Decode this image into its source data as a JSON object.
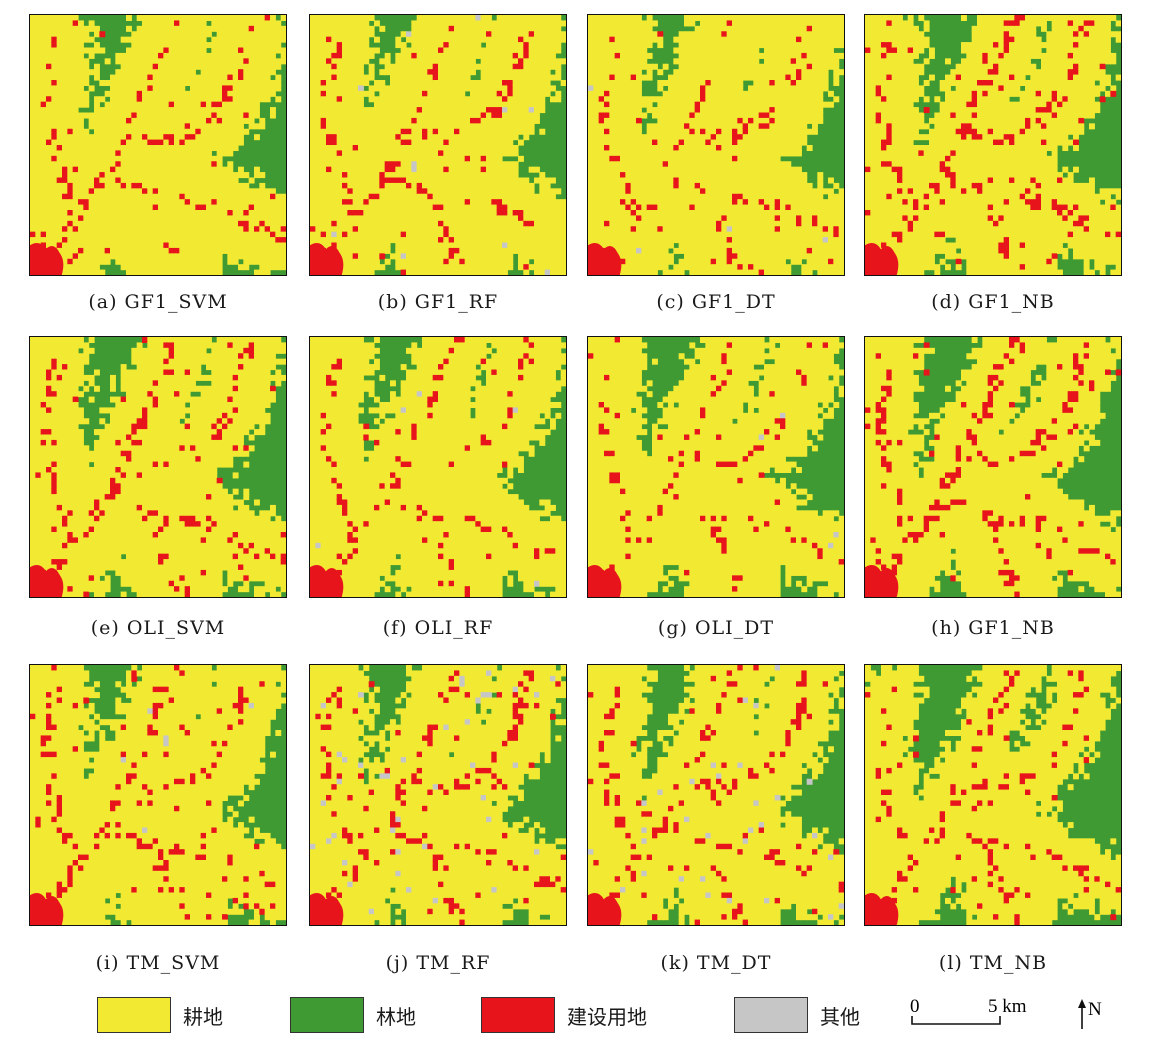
{
  "panels": [
    {
      "id": "a",
      "caption": "(a) GF1_SVM",
      "yellow": 0.5,
      "red": 0.045,
      "gray": 0.0,
      "seed": 11,
      "sw_red": true
    },
    {
      "id": "b",
      "caption": "(b) GF1_RF",
      "yellow": 0.52,
      "red": 0.035,
      "gray": 0.004,
      "seed": 23,
      "sw_red": true
    },
    {
      "id": "c",
      "caption": "(c) GF1_DT",
      "yellow": 0.52,
      "red": 0.035,
      "gray": 0.002,
      "seed": 37,
      "sw_red": true
    },
    {
      "id": "d",
      "caption": "(d) GF1_NB",
      "yellow": 0.42,
      "red": 0.06,
      "gray": 0.0,
      "seed": 41,
      "sw_red": true
    },
    {
      "id": "e",
      "caption": "(e) OLI_SVM",
      "yellow": 0.42,
      "red": 0.05,
      "gray": 0.0,
      "seed": 53,
      "sw_red": true
    },
    {
      "id": "f",
      "caption": "(f) OLI_RF",
      "yellow": 0.45,
      "red": 0.035,
      "gray": 0.002,
      "seed": 67,
      "sw_red": true
    },
    {
      "id": "g",
      "caption": "(g) OLI_DT",
      "yellow": 0.42,
      "red": 0.035,
      "gray": 0.002,
      "seed": 71,
      "sw_red": true
    },
    {
      "id": "h",
      "caption": "(h) GF1_NB",
      "yellow": 0.4,
      "red": 0.06,
      "gray": 0.0,
      "seed": 83,
      "sw_red": true
    },
    {
      "id": "i",
      "caption": "(i) TM_SVM",
      "yellow": 0.48,
      "red": 0.05,
      "gray": 0.004,
      "seed": 97,
      "sw_red": true
    },
    {
      "id": "j",
      "caption": "(j) TM_RF",
      "yellow": 0.46,
      "red": 0.045,
      "gray": 0.02,
      "seed": 101,
      "sw_red": true
    },
    {
      "id": "k",
      "caption": "(k) TM_DT",
      "yellow": 0.44,
      "red": 0.05,
      "gray": 0.015,
      "seed": 113,
      "sw_red": true
    },
    {
      "id": "l",
      "caption": "(l) TM_NB",
      "yellow": 0.32,
      "red": 0.045,
      "gray": 0.0,
      "seed": 127,
      "sw_red": true
    }
  ],
  "legend": [
    {
      "label": "耕地",
      "color": "#f2ea32"
    },
    {
      "label": "林地",
      "color": "#3f9a33"
    },
    {
      "label": "建设用地",
      "color": "#e8141c"
    },
    {
      "label": "其他",
      "color": "#c6c6c6"
    }
  ],
  "scalebar": {
    "zero": "0",
    "distance": "5 km"
  },
  "north": {
    "label": "N"
  }
}
